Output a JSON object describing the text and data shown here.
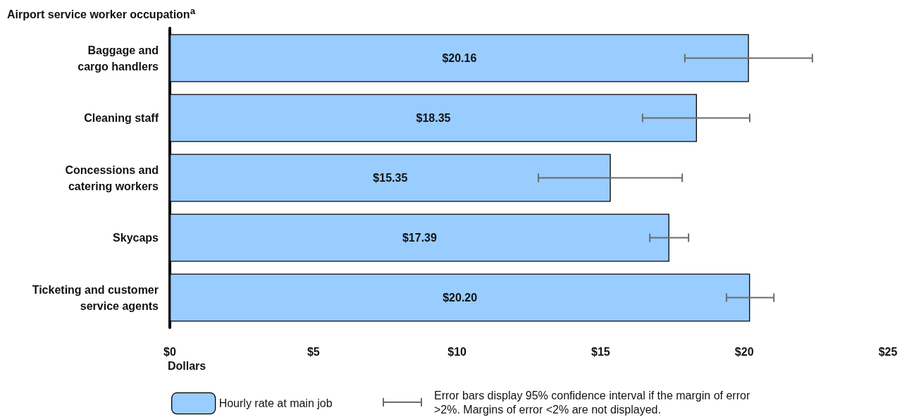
{
  "chart_data": {
    "type": "bar",
    "orientation": "horizontal",
    "ylabel": "Airport service worker occupation$^{a}$",
    "xlabel": "Dollars",
    "categories": [
      "Baggage and\ncargo handlers",
      "Cleaning staff",
      "Concessions and\ncatering workers",
      "Skycaps",
      "Ticketing and customer\nservice agents"
    ],
    "series": [
      {
        "name": "Hourly rate at main job",
        "color": "#99ccff",
        "values": [
          20.16,
          18.35,
          15.35,
          17.39,
          20.2
        ],
        "value_labels": [
          "$20.16",
          "$18.35",
          "$15.35",
          "$17.39",
          "$20.20"
        ],
        "errors": [
          [
            17.93,
            22.37
          ],
          [
            16.46,
            20.19
          ],
          [
            12.83,
            17.84
          ],
          [
            16.71,
            18.06
          ],
          [
            19.38,
            21.03
          ]
        ]
      }
    ],
    "xlim": [
      0,
      25
    ],
    "xticks": [
      {
        "value": 0,
        "label": "$0"
      },
      {
        "value": 5,
        "label": "$5"
      },
      {
        "value": 10,
        "label": "$10"
      },
      {
        "value": 15,
        "label": "$15"
      },
      {
        "value": 20,
        "label": "$20"
      },
      {
        "value": 25,
        "label": "$25"
      }
    ],
    "grid": false,
    "legend": "bottom left",
    "annotations": [
      "Error bars display 95% confidence interval if the margin of error >2%. Margins of error <2% are not displayed."
    ]
  }
}
